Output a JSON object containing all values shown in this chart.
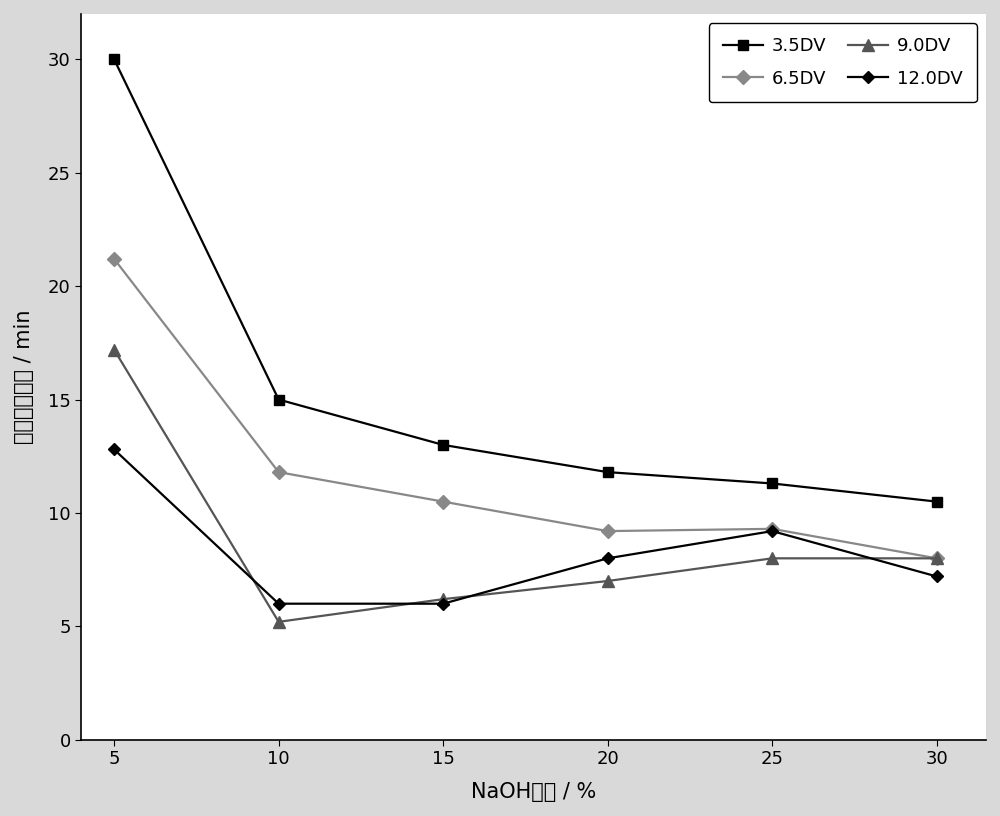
{
  "x": [
    5,
    10,
    15,
    20,
    25,
    30
  ],
  "series": [
    {
      "label": "3.5DV",
      "y": [
        30,
        15,
        13,
        11.8,
        11.3,
        10.5
      ],
      "color": "#000000",
      "marker": "s",
      "markersize": 7,
      "linewidth": 1.6
    },
    {
      "label": "6.5DV",
      "y": [
        21.2,
        11.8,
        10.5,
        9.2,
        9.3,
        8.0
      ],
      "color": "#888888",
      "marker": "D",
      "markersize": 7,
      "linewidth": 1.6
    },
    {
      "label": "9.0DV",
      "y": [
        17.2,
        5.2,
        6.2,
        7.0,
        8.0,
        8.0
      ],
      "color": "#555555",
      "marker": "^",
      "markersize": 8,
      "linewidth": 1.6
    },
    {
      "label": "12.0DV",
      "y": [
        12.8,
        6.0,
        6.0,
        8.0,
        9.2,
        7.2
      ],
      "color": "#000000",
      "marker": "D",
      "markersize": 6,
      "linewidth": 1.6
    }
  ],
  "xlabel": "NaOH浓度 / %",
  "ylabel": "完成退镙时间 / min",
  "xlim": [
    4,
    31.5
  ],
  "ylim": [
    0,
    32
  ],
  "xticks": [
    5,
    10,
    15,
    20,
    25,
    30
  ],
  "yticks": [
    0,
    5,
    10,
    15,
    20,
    25,
    30
  ],
  "background_color": "#d9d9d9",
  "plot_bg_color": "#ffffff",
  "legend_loc": "upper right",
  "axis_fontsize": 15,
  "tick_fontsize": 13,
  "legend_fontsize": 13
}
